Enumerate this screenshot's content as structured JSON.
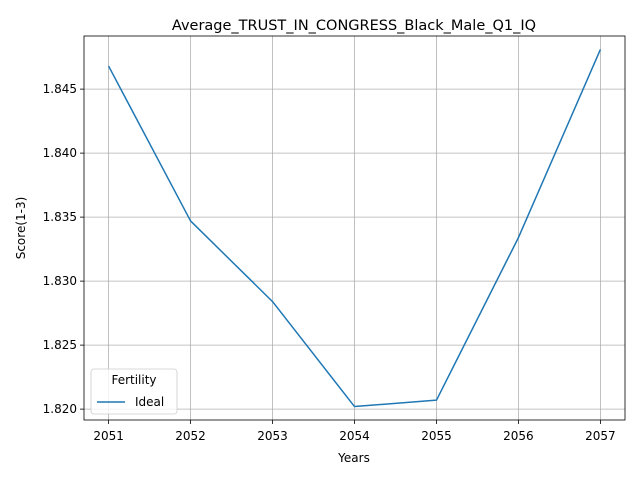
{
  "chart_data": {
    "type": "line",
    "title": "Average_TRUST_IN_CONGRESS_Black_Male_Q1_IQ",
    "xlabel": "Years",
    "ylabel": "Score(1-3)",
    "x": [
      2051,
      2052,
      2053,
      2054,
      2055,
      2056,
      2057
    ],
    "xticks": [
      "2051",
      "2052",
      "2053",
      "2054",
      "2055",
      "2056",
      "2057"
    ],
    "yticks": [
      1.82,
      1.825,
      1.83,
      1.835,
      1.84,
      1.845
    ],
    "ytick_labels": [
      "1.820",
      "1.825",
      "1.830",
      "1.835",
      "1.840",
      "1.845"
    ],
    "xlim": [
      2050.7,
      2057.3
    ],
    "ylim": [
      1.81915,
      1.84915
    ],
    "grid": true,
    "legend": {
      "title": "Fertility",
      "placement": "lower-left"
    },
    "series": [
      {
        "name": "Ideal",
        "color": "#1f77b4",
        "values": [
          1.8468,
          1.8347,
          1.8284,
          1.8202,
          1.8207,
          1.8334,
          1.8481
        ]
      }
    ]
  }
}
